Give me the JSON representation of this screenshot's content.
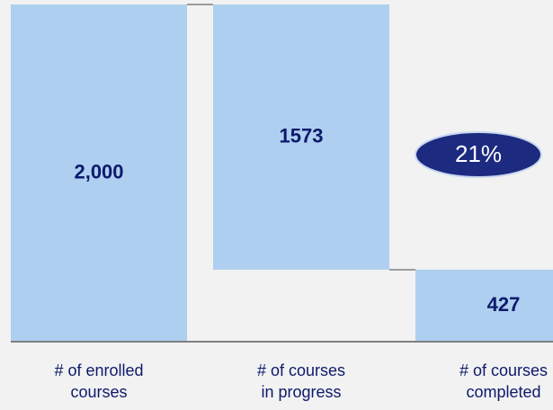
{
  "chart_data": {
    "type": "waterfall",
    "categories": [
      [
        "# of enrolled",
        "courses"
      ],
      [
        "# of courses",
        "in progress"
      ],
      [
        "# of courses",
        "completed"
      ]
    ],
    "values": [
      2000,
      1573,
      427
    ],
    "value_labels": [
      "2,000",
      "1573",
      "427"
    ],
    "measure": [
      "total",
      "decrease",
      "total"
    ],
    "color": "#aecff0",
    "ylim": [
      0,
      2000
    ],
    "annotation": "21%"
  }
}
